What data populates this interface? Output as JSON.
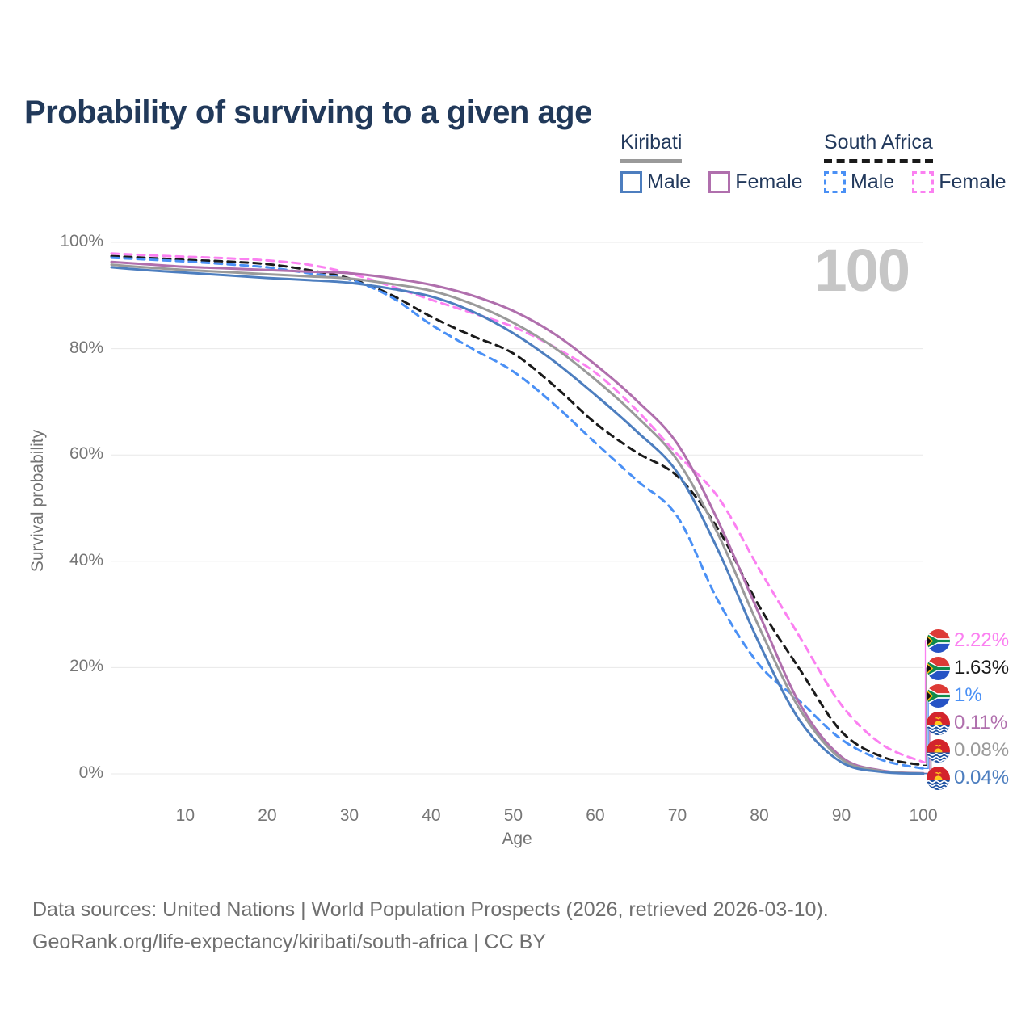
{
  "title": "Probability of surviving to a given age",
  "watermark": "100",
  "legend": {
    "groups": [
      {
        "title": "Kiribati",
        "underline_style": "solid",
        "underline_color": "#9a9a9a",
        "items": [
          {
            "label": "Male",
            "color": "#4d7ebf",
            "dash": false
          },
          {
            "label": "Female",
            "color": "#b06fad",
            "dash": false
          }
        ]
      },
      {
        "title": "South Africa",
        "underline_style": "dashed",
        "underline_color": "#1a1a1a",
        "items": [
          {
            "label": "Male",
            "color": "#4a90f5",
            "dash": true
          },
          {
            "label": "Female",
            "color": "#fb80f1",
            "dash": true
          }
        ]
      }
    ]
  },
  "footer": {
    "line1": "Data sources: United Nations | World Population Prospects (2026, retrieved 2026-03-10).",
    "line2": "GeoRank.org/life-expectancy/kiribati/south-africa | CC BY"
  },
  "chart_data": {
    "type": "line",
    "title": "Probability of surviving to a given age",
    "xlabel": "Age",
    "ylabel": "Survival probability",
    "xlim": [
      1,
      100
    ],
    "ylim": [
      0,
      100
    ],
    "grid": "horizontal",
    "x_ticks": [
      10,
      20,
      30,
      40,
      50,
      60,
      70,
      80,
      90,
      100
    ],
    "y_ticks": [
      0,
      20,
      40,
      60,
      80,
      100
    ],
    "y_tick_suffix": "%",
    "x": [
      1,
      5,
      10,
      15,
      20,
      25,
      30,
      35,
      40,
      45,
      50,
      55,
      60,
      65,
      70,
      75,
      80,
      85,
      90,
      95,
      100
    ],
    "series": [
      {
        "name": "South Africa Female",
        "country": "South Africa",
        "sex": "Female",
        "color": "#fb80f1",
        "dash": true,
        "flag": "south-africa",
        "end_label": "2.22%",
        "values": [
          97.9,
          97.6,
          97.3,
          97.0,
          96.6,
          95.8,
          94.2,
          91.8,
          89.2,
          86.7,
          84.1,
          80.3,
          75.5,
          68.5,
          60.1,
          52.0,
          38.5,
          25.6,
          13.0,
          5.5,
          2.22
        ]
      },
      {
        "name": "South Africa Both sexes",
        "country": "South Africa",
        "sex": "Both sexes",
        "color": "#1a1a1a",
        "dash": true,
        "flag": "south-africa",
        "end_label": "1.63%",
        "values": [
          97.4,
          97.1,
          96.7,
          96.4,
          95.9,
          94.8,
          93.2,
          90.2,
          86.0,
          82.4,
          79.1,
          73.0,
          66.0,
          60.5,
          56.0,
          46.0,
          31.5,
          19.5,
          8.0,
          3.2,
          1.63
        ]
      },
      {
        "name": "South Africa Male",
        "country": "South Africa",
        "sex": "Male",
        "color": "#4a90f5",
        "dash": true,
        "flag": "south-africa",
        "end_label": "1%",
        "values": [
          97.1,
          96.8,
          96.4,
          95.9,
          95.3,
          94.2,
          93.0,
          89.8,
          84.5,
          80.0,
          75.7,
          69.5,
          62.3,
          55.3,
          48.4,
          32.5,
          20.5,
          13.6,
          6.5,
          2.6,
          1.0
        ]
      },
      {
        "name": "Kiribati Female",
        "country": "Kiribati",
        "sex": "Female",
        "color": "#b06fad",
        "dash": false,
        "flag": "kiribati",
        "end_label": "0.11%",
        "values": [
          96.3,
          95.9,
          95.4,
          95.1,
          94.8,
          94.5,
          94.2,
          93.3,
          92.0,
          90.0,
          87.1,
          82.8,
          77.0,
          70.3,
          62.1,
          47.5,
          30.0,
          13.0,
          3.2,
          0.6,
          0.11
        ]
      },
      {
        "name": "Kiribati Both sexes",
        "country": "Kiribati",
        "sex": "Both sexes",
        "color": "#9a9a9a",
        "dash": false,
        "flag": "kiribati",
        "end_label": "0.08%",
        "values": [
          95.8,
          95.3,
          94.8,
          94.4,
          94.0,
          93.6,
          93.2,
          92.2,
          90.9,
          88.4,
          84.9,
          80.2,
          74.2,
          67.3,
          59.0,
          45.0,
          27.5,
          12.0,
          2.8,
          0.5,
          0.08
        ]
      },
      {
        "name": "Kiribati Male",
        "country": "Kiribati",
        "sex": "Male",
        "color": "#4d7ebf",
        "dash": false,
        "flag": "kiribati",
        "end_label": "0.04%",
        "values": [
          95.3,
          94.8,
          94.3,
          93.8,
          93.3,
          92.9,
          92.4,
          91.3,
          89.8,
          87.0,
          82.9,
          77.6,
          71.3,
          64.5,
          56.7,
          42.0,
          24.5,
          9.9,
          2.2,
          0.35,
          0.04
        ]
      }
    ],
    "legend_position": "top-right",
    "watermark": "100"
  }
}
